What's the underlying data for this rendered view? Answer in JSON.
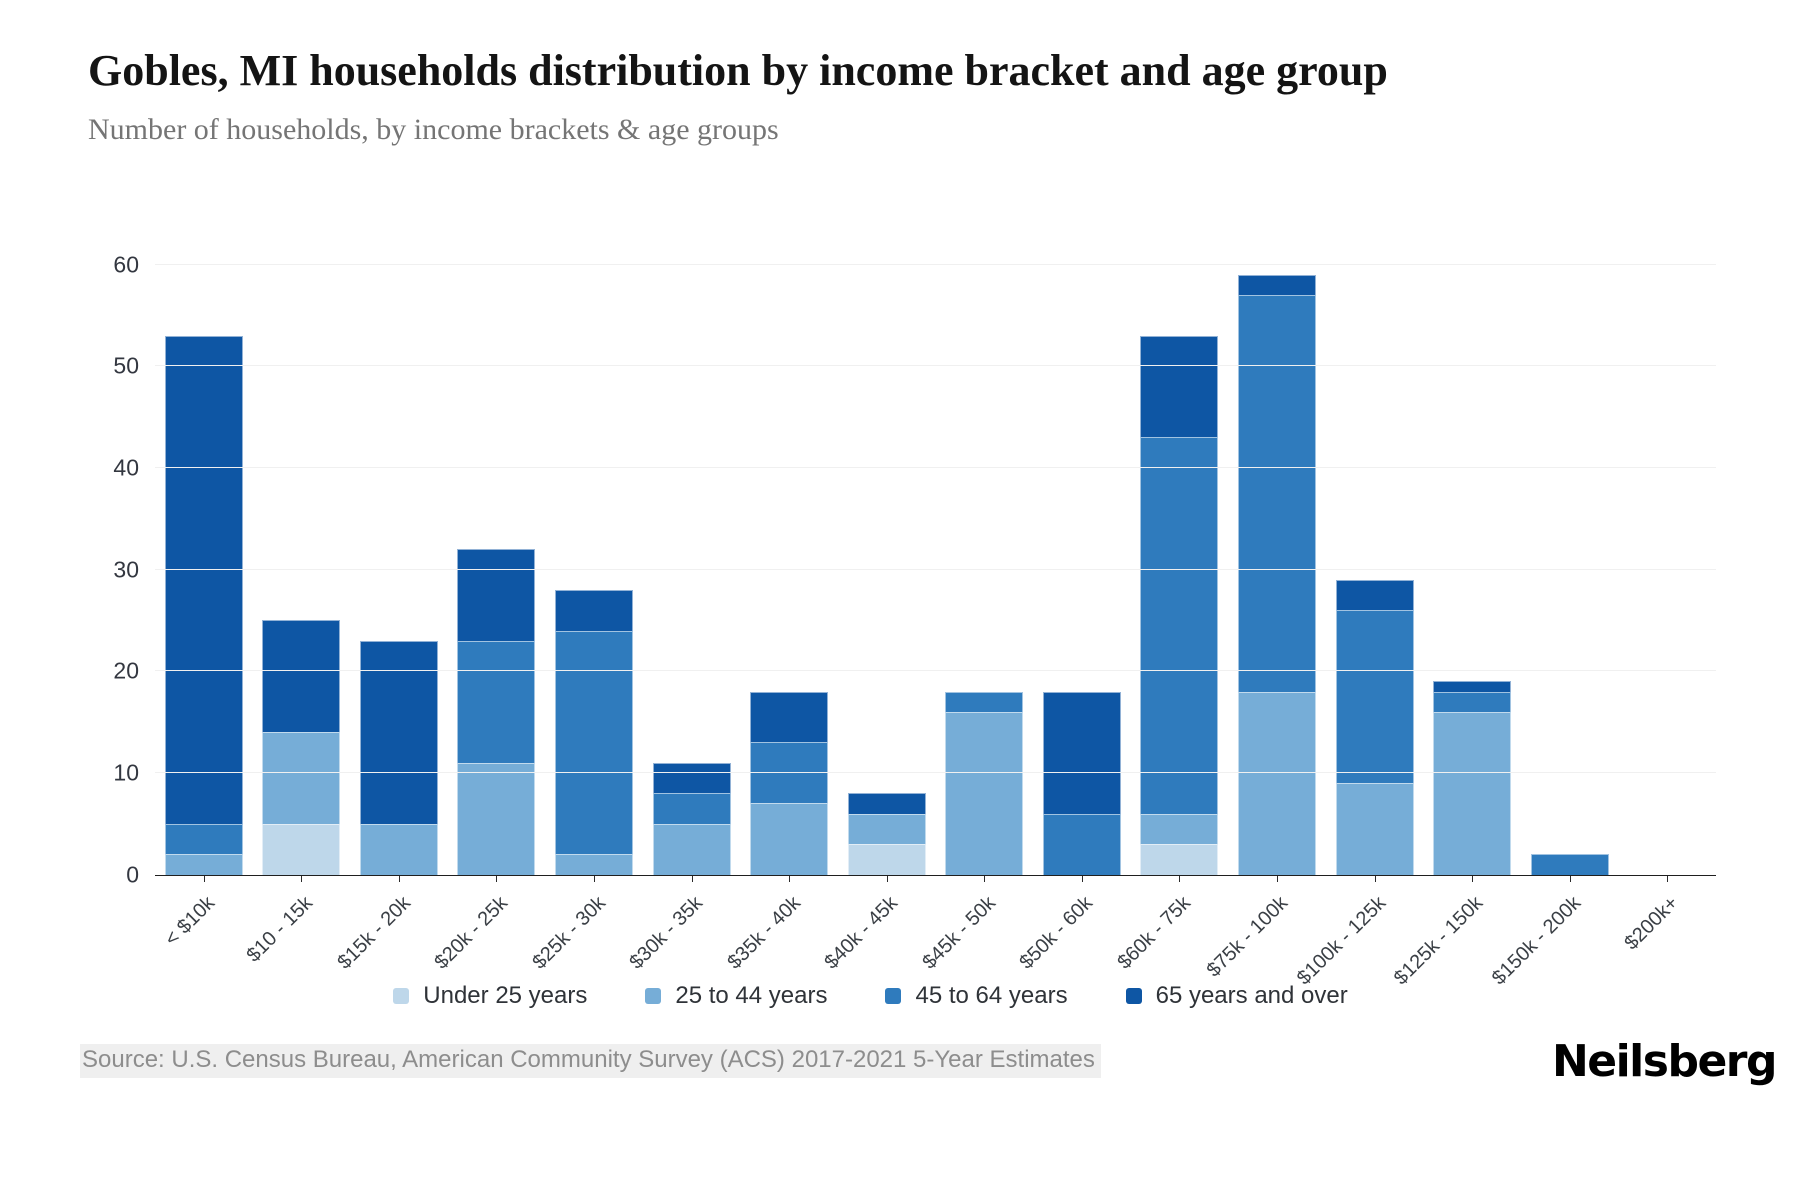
{
  "header": {
    "title": "Gobles, MI households distribution by income bracket and age group",
    "subtitle": "Number of households, by income brackets & age groups"
  },
  "chart_data": {
    "type": "bar",
    "stacked": true,
    "title": "Gobles, MI households distribution by income bracket and age group",
    "xlabel": "",
    "ylabel": "Number of households",
    "ylim": [
      0,
      60
    ],
    "yticks": [
      0,
      10,
      20,
      30,
      40,
      50,
      60
    ],
    "grid": "horizontal",
    "legend_position": "bottom",
    "categories": [
      "< $10k",
      "$10 - 15k",
      "$15k - 20k",
      "$20k - 25k",
      "$25k - 30k",
      "$30k - 35k",
      "$35k - 40k",
      "$40k - 45k",
      "$45k - 50k",
      "$50k - 60k",
      "$60k - 75k",
      "$75k - 100k",
      "$100k - 125k",
      "$125k - 150k",
      "$150k - 200k",
      "$200k+"
    ],
    "series": [
      {
        "name": "Under 25 years",
        "color": "#bed7ea",
        "values": [
          0,
          5,
          0,
          0,
          0,
          0,
          0,
          3,
          0,
          0,
          3,
          0,
          0,
          0,
          0,
          0
        ]
      },
      {
        "name": "25 to 44 years",
        "color": "#76add7",
        "values": [
          2,
          9,
          5,
          11,
          2,
          5,
          7,
          3,
          16,
          0,
          3,
          18,
          9,
          16,
          0,
          0
        ]
      },
      {
        "name": "45 to 64 years",
        "color": "#2f7bbd",
        "values": [
          3,
          0,
          0,
          12,
          22,
          3,
          6,
          0,
          2,
          6,
          37,
          39,
          17,
          2,
          2,
          0
        ]
      },
      {
        "name": "65 years and over",
        "color": "#0e56a4",
        "values": [
          48,
          11,
          18,
          9,
          4,
          3,
          5,
          2,
          0,
          12,
          10,
          2,
          3,
          1,
          0,
          0
        ]
      }
    ],
    "totals": [
      53,
      25,
      23,
      32,
      28,
      11,
      18,
      8,
      18,
      18,
      53,
      59,
      29,
      19,
      2,
      0
    ]
  },
  "footer": {
    "source": "Source: U.S. Census Bureau, American Community Survey (ACS) 2017-2021 5-Year Estimates",
    "brand": "Neilsberg"
  }
}
